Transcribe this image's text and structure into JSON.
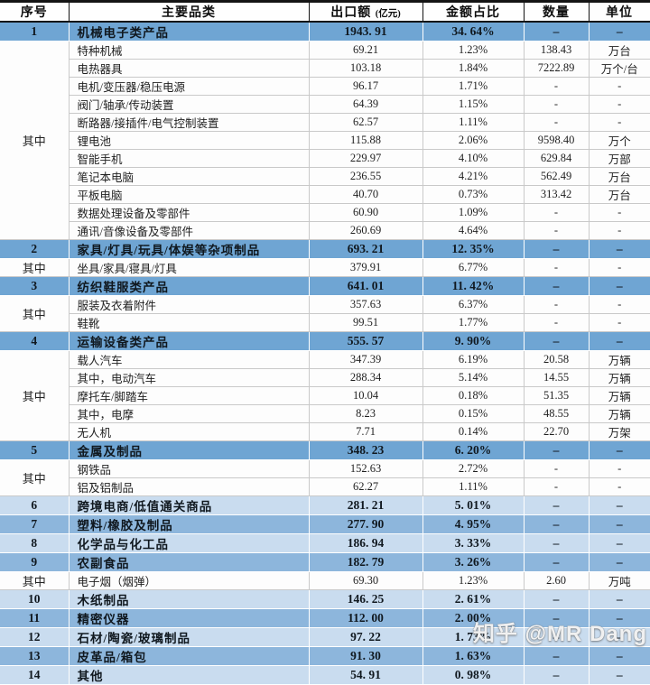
{
  "header": {
    "columns": [
      "序号",
      "主要品类",
      "出口额",
      "金额占比",
      "数量",
      "单位"
    ],
    "amount_note": "(亿元)"
  },
  "watermark": "知乎 @MR Dang",
  "colors": {
    "main_category_row": "#6fa5d3",
    "alt_medium_row": "#8db6dc",
    "alt_light_row": "#c9dcef",
    "grid_line": "#c9c9c9",
    "header_border": "#141414"
  },
  "chart_data": {
    "type": "table",
    "title": "",
    "columns": [
      "序号",
      "主要品类",
      "出口额 (亿元)",
      "金额占比",
      "数量",
      "单位"
    ],
    "rows": [
      {
        "no": "1",
        "rowspan": 1,
        "category": "机械电子类产品",
        "amount": "1943. 91",
        "share": "34. 64%",
        "qty": "–",
        "unit": "–",
        "style": "main"
      },
      {
        "no": "其中",
        "rowspan": 11,
        "category": "特种机械",
        "amount": "69.21",
        "share": "1.23%",
        "qty": "138.43",
        "unit": "万台",
        "style": "sub"
      },
      {
        "category": "电热器具",
        "amount": "103.18",
        "share": "1.84%",
        "qty": "7222.89",
        "unit": "万个/台",
        "style": "sub"
      },
      {
        "category": "电机/变压器/稳压电源",
        "amount": "96.17",
        "share": "1.71%",
        "qty": "-",
        "unit": "-",
        "style": "sub"
      },
      {
        "category": "阀门/轴承/传动装置",
        "amount": "64.39",
        "share": "1.15%",
        "qty": "-",
        "unit": "-",
        "style": "sub"
      },
      {
        "category": "断路器/接插件/电气控制装置",
        "amount": "62.57",
        "share": "1.11%",
        "qty": "-",
        "unit": "-",
        "style": "sub"
      },
      {
        "category": "锂电池",
        "amount": "115.88",
        "share": "2.06%",
        "qty": "9598.40",
        "unit": "万个",
        "style": "sub"
      },
      {
        "category": "智能手机",
        "amount": "229.97",
        "share": "4.10%",
        "qty": "629.84",
        "unit": "万部",
        "style": "sub"
      },
      {
        "category": "笔记本电脑",
        "amount": "236.55",
        "share": "4.21%",
        "qty": "562.49",
        "unit": "万台",
        "style": "sub"
      },
      {
        "category": "平板电脑",
        "amount": "40.70",
        "share": "0.73%",
        "qty": "313.42",
        "unit": "万台",
        "style": "sub"
      },
      {
        "category": "数据处理设备及零部件",
        "amount": "60.90",
        "share": "1.09%",
        "qty": "-",
        "unit": "-",
        "style": "sub"
      },
      {
        "category": "通讯/音像设备及零部件",
        "amount": "260.69",
        "share": "4.64%",
        "qty": "-",
        "unit": "-",
        "style": "sub"
      },
      {
        "no": "2",
        "rowspan": 1,
        "category": "家具/灯具/玩具/体娱等杂项制品",
        "amount": "693. 21",
        "share": "12. 35%",
        "qty": "–",
        "unit": "–",
        "style": "main"
      },
      {
        "no": "其中",
        "rowspan": 1,
        "category": "坐具/家具/寝具/灯具",
        "amount": "379.91",
        "share": "6.77%",
        "qty": "-",
        "unit": "-",
        "style": "sub"
      },
      {
        "no": "3",
        "rowspan": 1,
        "category": "纺织鞋服类产品",
        "amount": "641. 01",
        "share": "11. 42%",
        "qty": "–",
        "unit": "–",
        "style": "main"
      },
      {
        "no": "其中",
        "rowspan": 2,
        "category": "服装及衣着附件",
        "amount": "357.63",
        "share": "6.37%",
        "qty": "-",
        "unit": "-",
        "style": "sub"
      },
      {
        "category": "鞋靴",
        "amount": "99.51",
        "share": "1.77%",
        "qty": "-",
        "unit": "-",
        "style": "sub"
      },
      {
        "no": "4",
        "rowspan": 1,
        "category": "运输设备类产品",
        "amount": "555. 57",
        "share": "9. 90%",
        "qty": "–",
        "unit": "–",
        "style": "main"
      },
      {
        "no": "其中",
        "rowspan": 5,
        "category": "载人汽车",
        "amount": "347.39",
        "share": "6.19%",
        "qty": "20.58",
        "unit": "万辆",
        "style": "sub"
      },
      {
        "category": "其中，电动汽车",
        "amount": "288.34",
        "share": "5.14%",
        "qty": "14.55",
        "unit": "万辆",
        "style": "sub"
      },
      {
        "category": "摩托车/脚踏车",
        "amount": "10.04",
        "share": "0.18%",
        "qty": "51.35",
        "unit": "万辆",
        "style": "sub"
      },
      {
        "category": "其中，电摩",
        "amount": "8.23",
        "share": "0.15%",
        "qty": "48.55",
        "unit": "万辆",
        "style": "sub"
      },
      {
        "category": "无人机",
        "amount": "7.71",
        "share": "0.14%",
        "qty": "22.70",
        "unit": "万架",
        "style": "sub"
      },
      {
        "no": "5",
        "rowspan": 1,
        "category": "金属及制品",
        "amount": "348. 23",
        "share": "6. 20%",
        "qty": "–",
        "unit": "–",
        "style": "main"
      },
      {
        "no": "其中",
        "rowspan": 2,
        "category": "钢铁品",
        "amount": "152.63",
        "share": "2.72%",
        "qty": "-",
        "unit": "-",
        "style": "sub"
      },
      {
        "category": "铝及铝制品",
        "amount": "62.27",
        "share": "1.11%",
        "qty": "-",
        "unit": "-",
        "style": "sub"
      },
      {
        "no": "6",
        "rowspan": 1,
        "category": "跨境电商/低值通关商品",
        "amount": "281. 21",
        "share": "5. 01%",
        "qty": "–",
        "unit": "–",
        "style": "alt-light"
      },
      {
        "no": "7",
        "rowspan": 1,
        "category": "塑料/橡胶及制品",
        "amount": "277. 90",
        "share": "4. 95%",
        "qty": "–",
        "unit": "–",
        "style": "alt-medium"
      },
      {
        "no": "8",
        "rowspan": 1,
        "category": "化学品与化工品",
        "amount": "186. 94",
        "share": "3. 33%",
        "qty": "–",
        "unit": "–",
        "style": "alt-light"
      },
      {
        "no": "9",
        "rowspan": 1,
        "category": "农副食品",
        "amount": "182. 79",
        "share": "3. 26%",
        "qty": "–",
        "unit": "–",
        "style": "alt-medium"
      },
      {
        "no": "其中",
        "rowspan": 1,
        "category": "电子烟（烟弹）",
        "amount": "69.30",
        "share": "1.23%",
        "qty": "2.60",
        "unit": "万吨",
        "style": "sub"
      },
      {
        "no": "10",
        "rowspan": 1,
        "category": "木纸制品",
        "amount": "146. 25",
        "share": "2. 61%",
        "qty": "–",
        "unit": "–",
        "style": "alt-light"
      },
      {
        "no": "11",
        "rowspan": 1,
        "category": "精密仪器",
        "amount": "112. 00",
        "share": "2. 00%",
        "qty": "–",
        "unit": "–",
        "style": "alt-medium"
      },
      {
        "no": "12",
        "rowspan": 1,
        "category": "石材/陶瓷/玻璃制品",
        "amount": "97. 22",
        "share": "1. 73%",
        "qty": "–",
        "unit": "–",
        "style": "alt-light"
      },
      {
        "no": "13",
        "rowspan": 1,
        "category": "皮革品/箱包",
        "amount": "91. 30",
        "share": "1. 63%",
        "qty": "–",
        "unit": "–",
        "style": "alt-medium"
      },
      {
        "no": "14",
        "rowspan": 1,
        "category": "其他",
        "amount": "54. 91",
        "share": "0. 98%",
        "qty": "–",
        "unit": "–",
        "style": "alt-light"
      }
    ]
  }
}
